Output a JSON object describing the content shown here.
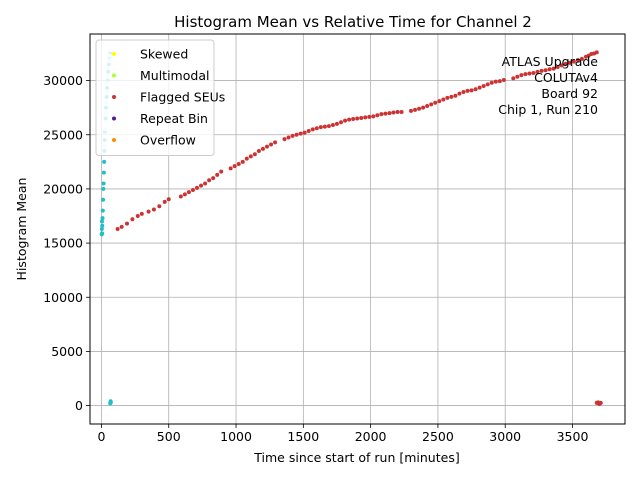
{
  "chart_data": {
    "type": "scatter",
    "title": "Histogram Mean vs Relative Time for Channel 2",
    "xlabel": "Time since start of run [minutes]",
    "ylabel": "Histogram Mean",
    "xlim": [
      -85,
      3890
    ],
    "ylim": [
      -1700,
      34300
    ],
    "xticks": [
      0,
      500,
      1000,
      1500,
      2000,
      2500,
      3000,
      3500
    ],
    "yticks": [
      0,
      5000,
      10000,
      15000,
      20000,
      25000,
      30000
    ],
    "grid": true,
    "legend_position": "top-left",
    "legend": [
      {
        "name": "Skewed",
        "color": "#ffff00"
      },
      {
        "name": "Multimodal",
        "color": "#adff2f"
      },
      {
        "name": "Flagged SEUs",
        "color": "#cd3333"
      },
      {
        "name": "Repeat Bin",
        "color": "#551a8b"
      },
      {
        "name": "Overflow",
        "color": "#ff8c00"
      }
    ],
    "annotation": [
      "ATLAS Upgrade",
      "COLUTAv4",
      "Board 92",
      "Chip 1, Run 210"
    ],
    "series": [
      {
        "color": "#cd3333",
        "points": [
          [
            120,
            16300
          ],
          [
            150,
            16500
          ],
          [
            190,
            16800
          ],
          [
            230,
            17200
          ],
          [
            270,
            17500
          ],
          [
            300,
            17700
          ],
          [
            350,
            17900
          ],
          [
            390,
            18100
          ],
          [
            430,
            18400
          ],
          [
            470,
            18800
          ],
          [
            500,
            19050
          ],
          [
            590,
            19300
          ],
          [
            620,
            19500
          ],
          [
            650,
            19700
          ],
          [
            680,
            19900
          ],
          [
            710,
            20100
          ],
          [
            740,
            20300
          ],
          [
            770,
            20500
          ],
          [
            800,
            20800
          ],
          [
            830,
            21000
          ],
          [
            860,
            21300
          ],
          [
            890,
            21600
          ],
          [
            960,
            21900
          ],
          [
            990,
            22100
          ],
          [
            1020,
            22300
          ],
          [
            1050,
            22500
          ],
          [
            1080,
            22800
          ],
          [
            1110,
            23000
          ],
          [
            1140,
            23200
          ],
          [
            1170,
            23500
          ],
          [
            1200,
            23700
          ],
          [
            1230,
            23900
          ],
          [
            1260,
            24100
          ],
          [
            1290,
            24300
          ],
          [
            1360,
            24600
          ],
          [
            1390,
            24750
          ],
          [
            1420,
            24900
          ],
          [
            1450,
            25000
          ],
          [
            1480,
            25100
          ],
          [
            1510,
            25200
          ],
          [
            1540,
            25350
          ],
          [
            1570,
            25500
          ],
          [
            1600,
            25600
          ],
          [
            1630,
            25700
          ],
          [
            1660,
            25750
          ],
          [
            1690,
            25800
          ],
          [
            1720,
            25900
          ],
          [
            1750,
            26000
          ],
          [
            1780,
            26150
          ],
          [
            1810,
            26300
          ],
          [
            1840,
            26400
          ],
          [
            1870,
            26450
          ],
          [
            1900,
            26500
          ],
          [
            1930,
            26550
          ],
          [
            1960,
            26600
          ],
          [
            1990,
            26650
          ],
          [
            2020,
            26700
          ],
          [
            2050,
            26800
          ],
          [
            2080,
            26900
          ],
          [
            2110,
            26950
          ],
          [
            2140,
            27000
          ],
          [
            2170,
            27050
          ],
          [
            2200,
            27100
          ],
          [
            2230,
            27100
          ],
          [
            2300,
            27200
          ],
          [
            2330,
            27300
          ],
          [
            2360,
            27400
          ],
          [
            2390,
            27500
          ],
          [
            2420,
            27650
          ],
          [
            2450,
            27800
          ],
          [
            2480,
            27950
          ],
          [
            2510,
            28100
          ],
          [
            2540,
            28250
          ],
          [
            2570,
            28400
          ],
          [
            2600,
            28500
          ],
          [
            2630,
            28600
          ],
          [
            2660,
            28800
          ],
          [
            2690,
            28950
          ],
          [
            2720,
            29050
          ],
          [
            2750,
            29100
          ],
          [
            2780,
            29200
          ],
          [
            2810,
            29350
          ],
          [
            2840,
            29500
          ],
          [
            2870,
            29650
          ],
          [
            2900,
            29800
          ],
          [
            2930,
            29900
          ],
          [
            2960,
            29950
          ],
          [
            2990,
            30050
          ],
          [
            3060,
            30200
          ],
          [
            3090,
            30350
          ],
          [
            3120,
            30500
          ],
          [
            3150,
            30600
          ],
          [
            3180,
            30650
          ],
          [
            3210,
            30700
          ],
          [
            3240,
            30800
          ],
          [
            3270,
            30900
          ],
          [
            3300,
            30950
          ],
          [
            3330,
            31050
          ],
          [
            3360,
            31100
          ],
          [
            3390,
            31250
          ],
          [
            3420,
            31400
          ],
          [
            3450,
            31550
          ],
          [
            3480,
            31650
          ],
          [
            3510,
            31750
          ],
          [
            3540,
            31900
          ],
          [
            3570,
            32000
          ],
          [
            3600,
            32200
          ],
          [
            3620,
            32300
          ],
          [
            3640,
            32450
          ],
          [
            3660,
            32500
          ],
          [
            3680,
            32600
          ],
          [
            3680,
            250
          ],
          [
            3690,
            300
          ],
          [
            3695,
            200
          ],
          [
            3700,
            150
          ],
          [
            3710,
            250
          ]
        ]
      },
      {
        "color": "#1fbfc8",
        "points": [
          [
            2,
            15800
          ],
          [
            3,
            16300
          ],
          [
            4,
            17000
          ],
          [
            5,
            15900
          ],
          [
            6,
            16600
          ],
          [
            8,
            17300
          ],
          [
            10,
            18000
          ],
          [
            12,
            19000
          ],
          [
            14,
            20000
          ],
          [
            16,
            20500
          ],
          [
            18,
            21500
          ],
          [
            20,
            22500
          ],
          [
            22,
            23500
          ],
          [
            24,
            24500
          ],
          [
            26,
            25300
          ],
          [
            30,
            26500
          ],
          [
            34,
            27500
          ],
          [
            38,
            28500
          ],
          [
            42,
            29300
          ],
          [
            46,
            30000
          ],
          [
            50,
            30800
          ],
          [
            55,
            31500
          ],
          [
            60,
            32200
          ],
          [
            65,
            32500
          ],
          [
            65,
            200
          ],
          [
            68,
            400
          ],
          [
            70,
            300
          ]
        ]
      },
      {
        "color": "#cdeff2",
        "points": [
          [
            24,
            24000
          ],
          [
            28,
            25500
          ],
          [
            32,
            27000
          ],
          [
            36,
            28000
          ],
          [
            40,
            29000
          ],
          [
            44,
            29800
          ],
          [
            48,
            30500
          ],
          [
            52,
            31200
          ],
          [
            56,
            31800
          ],
          [
            60,
            32300
          ]
        ]
      }
    ]
  }
}
